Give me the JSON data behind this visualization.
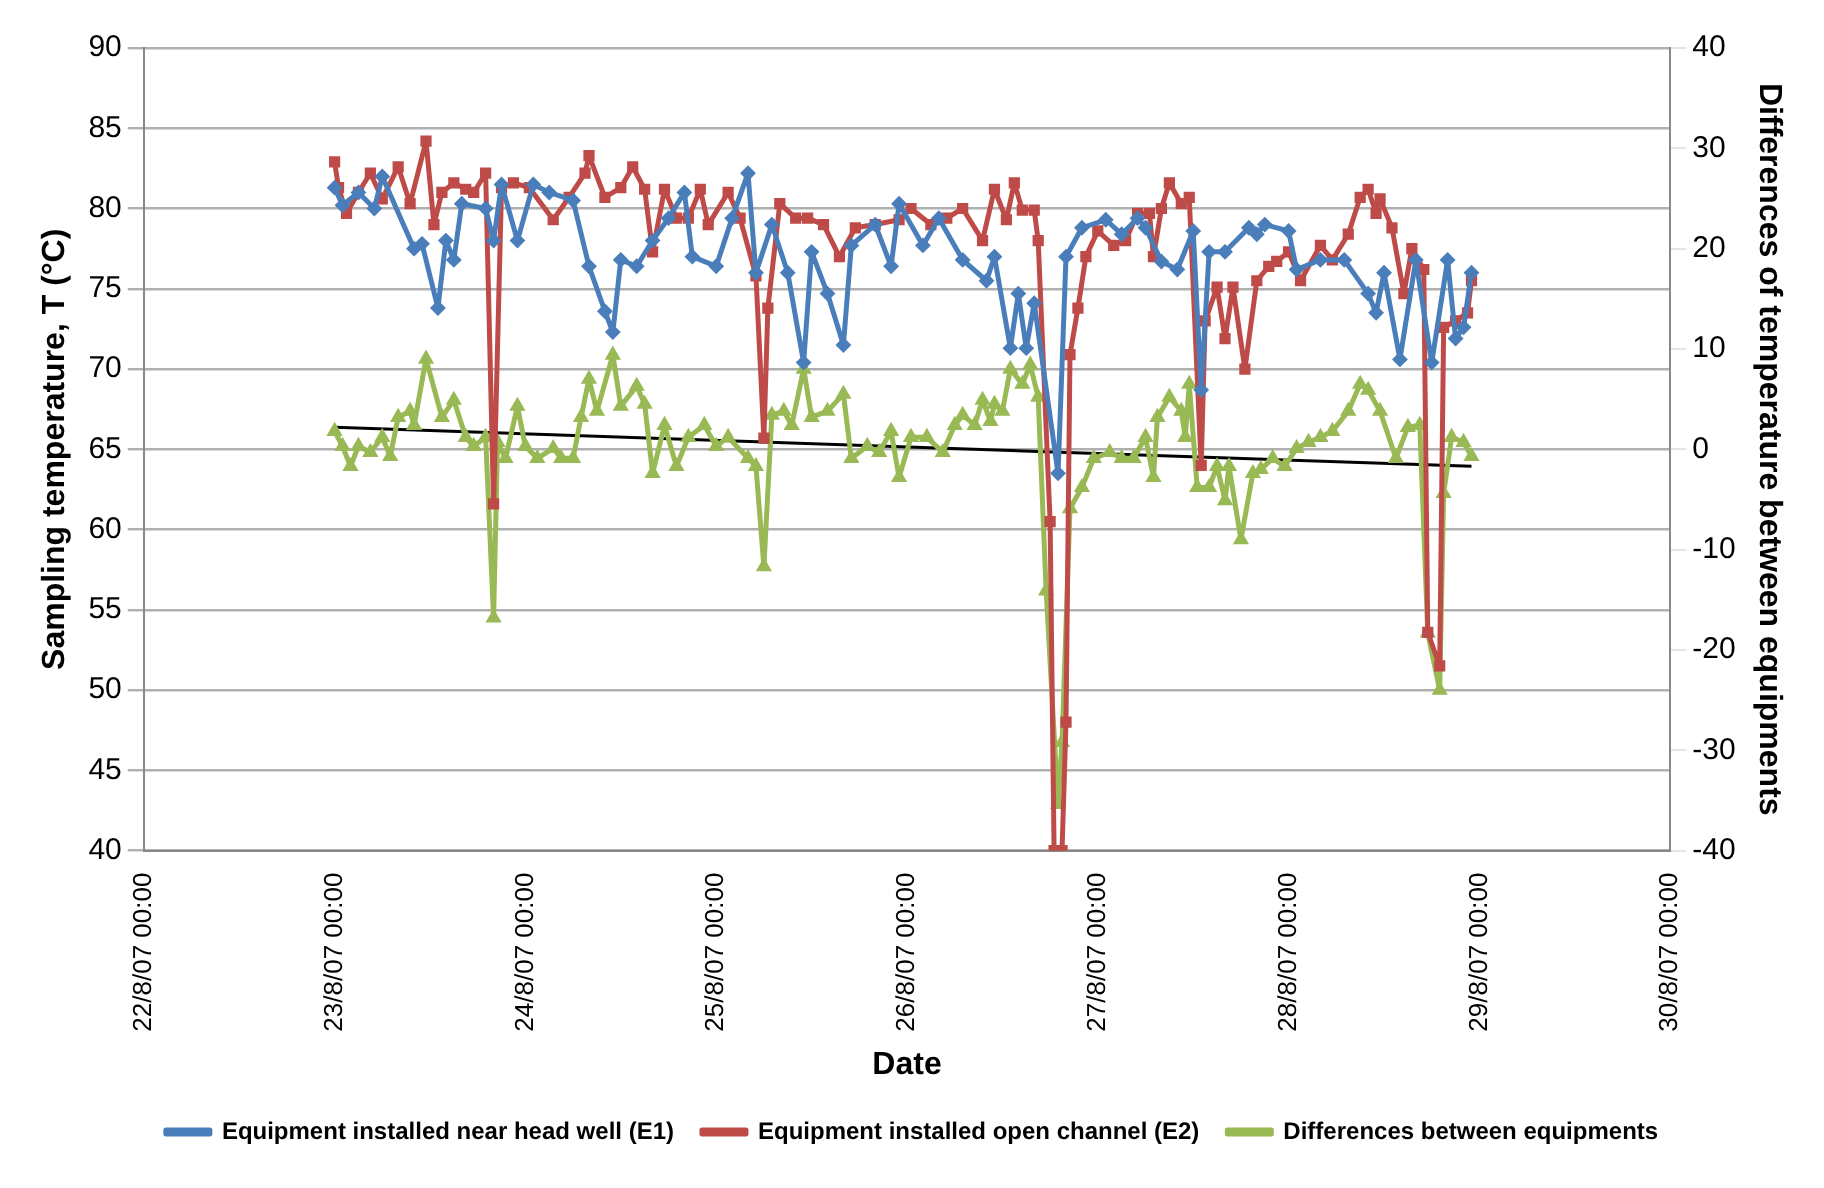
{
  "chart_data": {
    "type": "line",
    "xlabel": "Date",
    "ylabel": "Sampling temperature, T (°C)",
    "y2label": "Differences of temperature between equipments",
    "xlim": [
      "--08-22T00:00",
      "--08-30T00:00"
    ],
    "xticks": [
      {
        "value": "--08-22T00:00",
        "label": "22/8/07 00:00"
      },
      {
        "value": "--08-23T00:00",
        "label": "23/8/07 00:00"
      },
      {
        "value": "--08-24T00:00",
        "label": "24/8/07 00:00"
      },
      {
        "value": "--08-25T00:00",
        "label": "25/8/07 00:00"
      },
      {
        "value": "--08-26T00:00",
        "label": "26/8/07 00:00"
      },
      {
        "value": "--08-27T00:00",
        "label": "27/8/07 00:00"
      },
      {
        "value": "--08-28T00:00",
        "label": "28/8/07 00:00"
      },
      {
        "value": "--08-29T00:00",
        "label": "29/8/07 00:00"
      },
      {
        "value": "--08-30T00:00",
        "label": "30/8/07 00:00"
      }
    ],
    "ylim": [
      40,
      90
    ],
    "yticks": [
      40,
      45,
      50,
      55,
      60,
      65,
      70,
      75,
      80,
      85,
      90
    ],
    "y2lim": [
      -40,
      40
    ],
    "y2ticks": [
      -40,
      -30,
      -20,
      -10,
      0,
      10,
      20,
      30,
      40
    ],
    "grid": "y",
    "legend": "bottom",
    "series": [
      {
        "name": "Equipment installed near head well (E1)",
        "color": "#4a7ebb",
        "marker": "diamond",
        "x": [
          "--08-23T00:00",
          "--08-23T01:00",
          "--08-23T03:00",
          "--08-23T05:00",
          "--08-23T06:00",
          "--08-23T10:00",
          "--08-23T11:00",
          "--08-23T13:00",
          "--08-23T14:00",
          "--08-23T15:00",
          "--08-23T16:00",
          "--08-23T19:00",
          "--08-23T20:00",
          "--08-23T21:00",
          "--08-23T23:00",
          "--08-24T01:00",
          "--08-24T03:00",
          "--08-24T06:00",
          "--08-24T08:00",
          "--08-24T10:00",
          "--08-24T11:00",
          "--08-24T12:00",
          "--08-24T14:00",
          "--08-24T16:00",
          "--08-24T18:00",
          "--08-24T20:00",
          "--08-24T21:00",
          "--08-25T00:00",
          "--08-25T02:00",
          "--08-25T04:00",
          "--08-25T05:00",
          "--08-25T07:00",
          "--08-25T09:00",
          "--08-25T11:00",
          "--08-25T12:00",
          "--08-25T14:00",
          "--08-25T16:00",
          "--08-25T17:00",
          "--08-25T20:00",
          "--08-25T22:00",
          "--08-25T23:00",
          "--08-26T02:00",
          "--08-26T04:00",
          "--08-26T07:00",
          "--08-26T10:00",
          "--08-26T11:00",
          "--08-26T13:00",
          "--08-26T14:00",
          "--08-26T15:00",
          "--08-26T16:00",
          "--08-26T19:00",
          "--08-26T20:00",
          "--08-26T22:00",
          "--08-27T01:00",
          "--08-27T03:00",
          "--08-27T05:00",
          "--08-27T06:00",
          "--08-27T08:00",
          "--08-27T10:00",
          "--08-27T12:00",
          "--08-27T13:00",
          "--08-27T14:00",
          "--08-27T16:00",
          "--08-27T19:00",
          "--08-27T20:00",
          "--08-27T21:00",
          "--08-28T00:00",
          "--08-28T01:00",
          "--08-28T04:00",
          "--08-28T07:00",
          "--08-28T10:00",
          "--08-28T11:00",
          "--08-28T12:00",
          "--08-28T14:00",
          "--08-28T16:00",
          "--08-28T18:00",
          "--08-28T20:00",
          "--08-28T21:00",
          "--08-28T22:00",
          "--08-28T23:00"
        ],
        "values": [
          81.3,
          80.2,
          81,
          80,
          82,
          77.5,
          77.8,
          73.8,
          78,
          76.8,
          80.3,
          80,
          78,
          81.5,
          78,
          81.5,
          81,
          80.5,
          76.4,
          73.6,
          72.3,
          76.8,
          76.4,
          78,
          79.4,
          81,
          77,
          76.4,
          79.4,
          82.2,
          76,
          79,
          76,
          70.4,
          77.3,
          74.7,
          71.5,
          77.7,
          79,
          76.4,
          80.3,
          77.7,
          79.4,
          76.8,
          75.5,
          77,
          71.3,
          74.7,
          71.3,
          74.1,
          63.5,
          77,
          78.8,
          79.3,
          78.4,
          79.4,
          78.8,
          76.7,
          76.2,
          78.6,
          68.7,
          77.3,
          77.3,
          78.8,
          78.4,
          79,
          78.6,
          76.2,
          76.8,
          76.8,
          74.7,
          73.5,
          76,
          70.6,
          76.8,
          70.4,
          76.8,
          71.9,
          72.6,
          76
        ]
      },
      {
        "name": "Equipment installed open channel (E2)",
        "color": "#be4b48",
        "marker": "square",
        "x": [
          "--08-23T00:00",
          "--08-23T00:30",
          "--08-23T01:30",
          "--08-23T03:00",
          "--08-23T04:30",
          "--08-23T06:00",
          "--08-23T08:00",
          "--08-23T09:30",
          "--08-23T11:30",
          "--08-23T12:30",
          "--08-23T13:30",
          "--08-23T15:00",
          "--08-23T16:30",
          "--08-23T17:30",
          "--08-23T19:00",
          "--08-23T20:00",
          "--08-23T21:00",
          "--08-23T22:30",
          "--08-24T00:30",
          "--08-24T03:30",
          "--08-24T05:30",
          "--08-24T07:30",
          "--08-24T08:00",
          "--08-24T10:00",
          "--08-24T12:00",
          "--08-24T13:30",
          "--08-24T15:00",
          "--08-24T16:00",
          "--08-24T17:30",
          "--08-24T19:00",
          "--08-24T20:30",
          "--08-24T22:00",
          "--08-24T23:00",
          "--08-25T01:30",
          "--08-25T03:00",
          "--08-25T05:00",
          "--08-25T06:00",
          "--08-25T06:30",
          "--08-25T08:00",
          "--08-25T10:00",
          "--08-25T11:30",
          "--08-25T13:30",
          "--08-25T15:30",
          "--08-25T17:30",
          "--08-25T20:00",
          "--08-25T23:00",
          "--08-26T00:30",
          "--08-26T03:00",
          "--08-26T05:00",
          "--08-26T07:00",
          "--08-26T09:30",
          "--08-26T11:00",
          "--08-26T12:30",
          "--08-26T13:30",
          "--08-26T14:30",
          "--08-26T16:00",
          "--08-26T16:30",
          "--08-26T18:00",
          "--08-26T18:30",
          "--08-26T19:30",
          "--08-26T20:00",
          "--08-26T20:30",
          "--08-26T21:30",
          "--08-26T22:30",
          "--08-27T00:00",
          "--08-27T02:00",
          "--08-27T03:30",
          "--08-27T05:00",
          "--08-27T06:30",
          "--08-27T07:00",
          "--08-27T08:00",
          "--08-27T09:00",
          "--08-27T10:30",
          "--08-27T11:30",
          "--08-27T13:00",
          "--08-27T13:30",
          "--08-27T15:00",
          "--08-27T16:00",
          "--08-27T17:00",
          "--08-27T18:30",
          "--08-27T20:00",
          "--08-27T21:30",
          "--08-27T22:30",
          "--08-28T00:00",
          "--08-28T01:30",
          "--08-28T04:00",
          "--08-28T05:30",
          "--08-28T07:30",
          "--08-28T09:00",
          "--08-28T10:00",
          "--08-28T11:00",
          "--08-28T11:30",
          "--08-28T13:00",
          "--08-28T14:30",
          "--08-28T15:30",
          "--08-28T17:00",
          "--08-28T17:30",
          "--08-28T19:00",
          "--08-28T19:30",
          "--08-28T21:00",
          "--08-28T22:30",
          "--08-28T23:00"
        ],
        "values": [
          82.9,
          81.3,
          79.7,
          81,
          82.2,
          80.6,
          82.6,
          80.3,
          84.2,
          79,
          81,
          81.6,
          81.2,
          81,
          82.2,
          61.6,
          81.3,
          81.6,
          81.3,
          79.3,
          80.7,
          82.2,
          83.3,
          80.7,
          81.3,
          82.6,
          81.2,
          77.3,
          81.2,
          79.4,
          79.4,
          81.2,
          79,
          81,
          79.4,
          75.8,
          65.7,
          73.8,
          80.3,
          79.4,
          79.4,
          79,
          77,
          78.8,
          79,
          79.3,
          80,
          79,
          79.4,
          80,
          78,
          81.2,
          79.3,
          81.6,
          79.9,
          79.9,
          78,
          60.5,
          40,
          40,
          48,
          70.9,
          73.8,
          77,
          78.6,
          77.7,
          78,
          79.7,
          79.7,
          77,
          80,
          81.6,
          80.3,
          80.7,
          64,
          73,
          75.1,
          71.9,
          75.1,
          70,
          75.5,
          76.4,
          76.7,
          77.3,
          75.5,
          77.7,
          76.8,
          78.4,
          80.7,
          81.2,
          79.7,
          80.6,
          78.8,
          74.7,
          77.5,
          76.2,
          53.6,
          51.5,
          72.6,
          73,
          73.5,
          75.5
        ]
      },
      {
        "name": "Differences between equipments",
        "color": "#98b954",
        "marker": "triangle",
        "axis": "y2",
        "x": [
          "--08-23T00:00",
          "--08-23T01:00",
          "--08-23T02:00",
          "--08-23T03:00",
          "--08-23T04:30",
          "--08-23T06:00",
          "--08-23T07:00",
          "--08-23T08:00",
          "--08-23T09:30",
          "--08-23T10:00",
          "--08-23T11:30",
          "--08-23T13:30",
          "--08-23T15:00",
          "--08-23T16:30",
          "--08-23T17:30",
          "--08-23T19:00",
          "--08-23T20:00",
          "--08-23T20:30",
          "--08-23T21:30",
          "--08-23T23:00",
          "--08-24T00:00",
          "--08-24T01:30",
          "--08-24T03:30",
          "--08-24T04:30",
          "--08-24T06:00",
          "--08-24T07:00",
          "--08-24T08:00",
          "--08-24T09:00",
          "--08-24T11:00",
          "--08-24T12:00",
          "--08-24T14:00",
          "--08-24T15:00",
          "--08-24T16:00",
          "--08-24T17:30",
          "--08-24T19:00",
          "--08-24T20:30",
          "--08-24T22:30",
          "--08-25T00:00",
          "--08-25T01:30",
          "--08-25T04:00",
          "--08-25T05:00",
          "--08-25T06:00",
          "--08-25T07:00",
          "--08-25T08:30",
          "--08-25T09:30",
          "--08-25T11:00",
          "--08-25T12:00",
          "--08-25T14:00",
          "--08-25T16:00",
          "--08-25T17:00",
          "--08-25T19:00",
          "--08-25T20:30",
          "--08-25T22:00",
          "--08-25T23:00",
          "--08-26T00:30",
          "--08-26T02:30",
          "--08-26T04:30",
          "--08-26T06:00",
          "--08-26T07:00",
          "--08-26T08:30",
          "--08-26T09:30",
          "--08-26T10:30",
          "--08-26T11:00",
          "--08-26T12:00",
          "--08-26T13:00",
          "--08-26T14:30",
          "--08-26T15:30",
          "--08-26T16:30",
          "--08-26T17:30",
          "--08-26T19:00",
          "--08-26T19:30",
          "--08-26T20:30",
          "--08-26T22:00",
          "--08-26T23:30",
          "--08-27T01:30",
          "--08-27T03:00",
          "--08-27T04:30",
          "--08-27T06:00",
          "--08-27T07:00",
          "--08-27T07:30",
          "--08-27T09:00",
          "--08-27T10:30",
          "--08-27T11:00",
          "--08-27T11:30",
          "--08-27T12:30",
          "--08-27T14:00",
          "--08-27T15:00",
          "--08-27T16:00",
          "--08-27T16:30",
          "--08-27T18:00",
          "--08-27T19:30",
          "--08-27T20:30",
          "--08-27T22:00",
          "--08-27T23:30",
          "--08-28T01:00",
          "--08-28T02:30",
          "--08-28T04:00",
          "--08-28T05:30",
          "--08-28T07:30",
          "--08-28T09:00",
          "--08-28T10:00",
          "--08-28T11:30",
          "--08-28T13:30",
          "--08-28T15:00",
          "--08-28T16:30",
          "--08-28T17:30",
          "--08-28T19:00",
          "--08-28T19:30",
          "--08-28T20:30",
          "--08-28T22:00",
          "--08-28T23:00"
        ],
        "values": [
          1.8,
          0.3,
          -1.7,
          0.3,
          -0.3,
          1.2,
          -0.7,
          3.2,
          3.8,
          2.4,
          9,
          3.2,
          4.9,
          1.2,
          0.3,
          1.2,
          -16.8,
          0.7,
          -0.9,
          4.3,
          0.3,
          -0.9,
          0.1,
          -0.9,
          -0.9,
          3.2,
          7,
          3.8,
          9.4,
          4.3,
          6.3,
          4.5,
          -2.4,
          2.4,
          -1.7,
          1.2,
          2.4,
          0.3,
          1.2,
          -0.9,
          -1.7,
          -11.7,
          3.4,
          3.8,
          2.4,
          8,
          3.2,
          3.8,
          5.5,
          -0.9,
          0.3,
          -0.3,
          1.8,
          -2.8,
          1.2,
          1.2,
          -0.3,
          2.4,
          3.4,
          2.4,
          4.9,
          2.8,
          4.5,
          3.8,
          8,
          6.5,
          8.4,
          5.2,
          -14.1,
          -35.4,
          -29.2,
          -5.9,
          -3.8,
          -0.9,
          -0.3,
          -0.9,
          -0.9,
          1.2,
          -2.8,
          3.2,
          5.2,
          3.8,
          1.2,
          6.5,
          -3.8,
          -3.8,
          -1.7,
          -5.1,
          -1.7,
          -9,
          -2.4,
          -2,
          -0.9,
          -1.7,
          0.1,
          0.7,
          1.2,
          1.8,
          3.8,
          6.5,
          5.9,
          3.8,
          -0.9,
          2.2,
          2.4,
          -18.3,
          -24,
          -4.4,
          1.2,
          0.7,
          -0.7
        ]
      },
      {
        "color": "#000000",
        "marker": "none",
        "axis": "y2",
        "x": [
          "--08-23T00:00",
          "--08-28T23:00"
        ],
        "values": [
          2.2,
          -1.7
        ]
      }
    ]
  }
}
